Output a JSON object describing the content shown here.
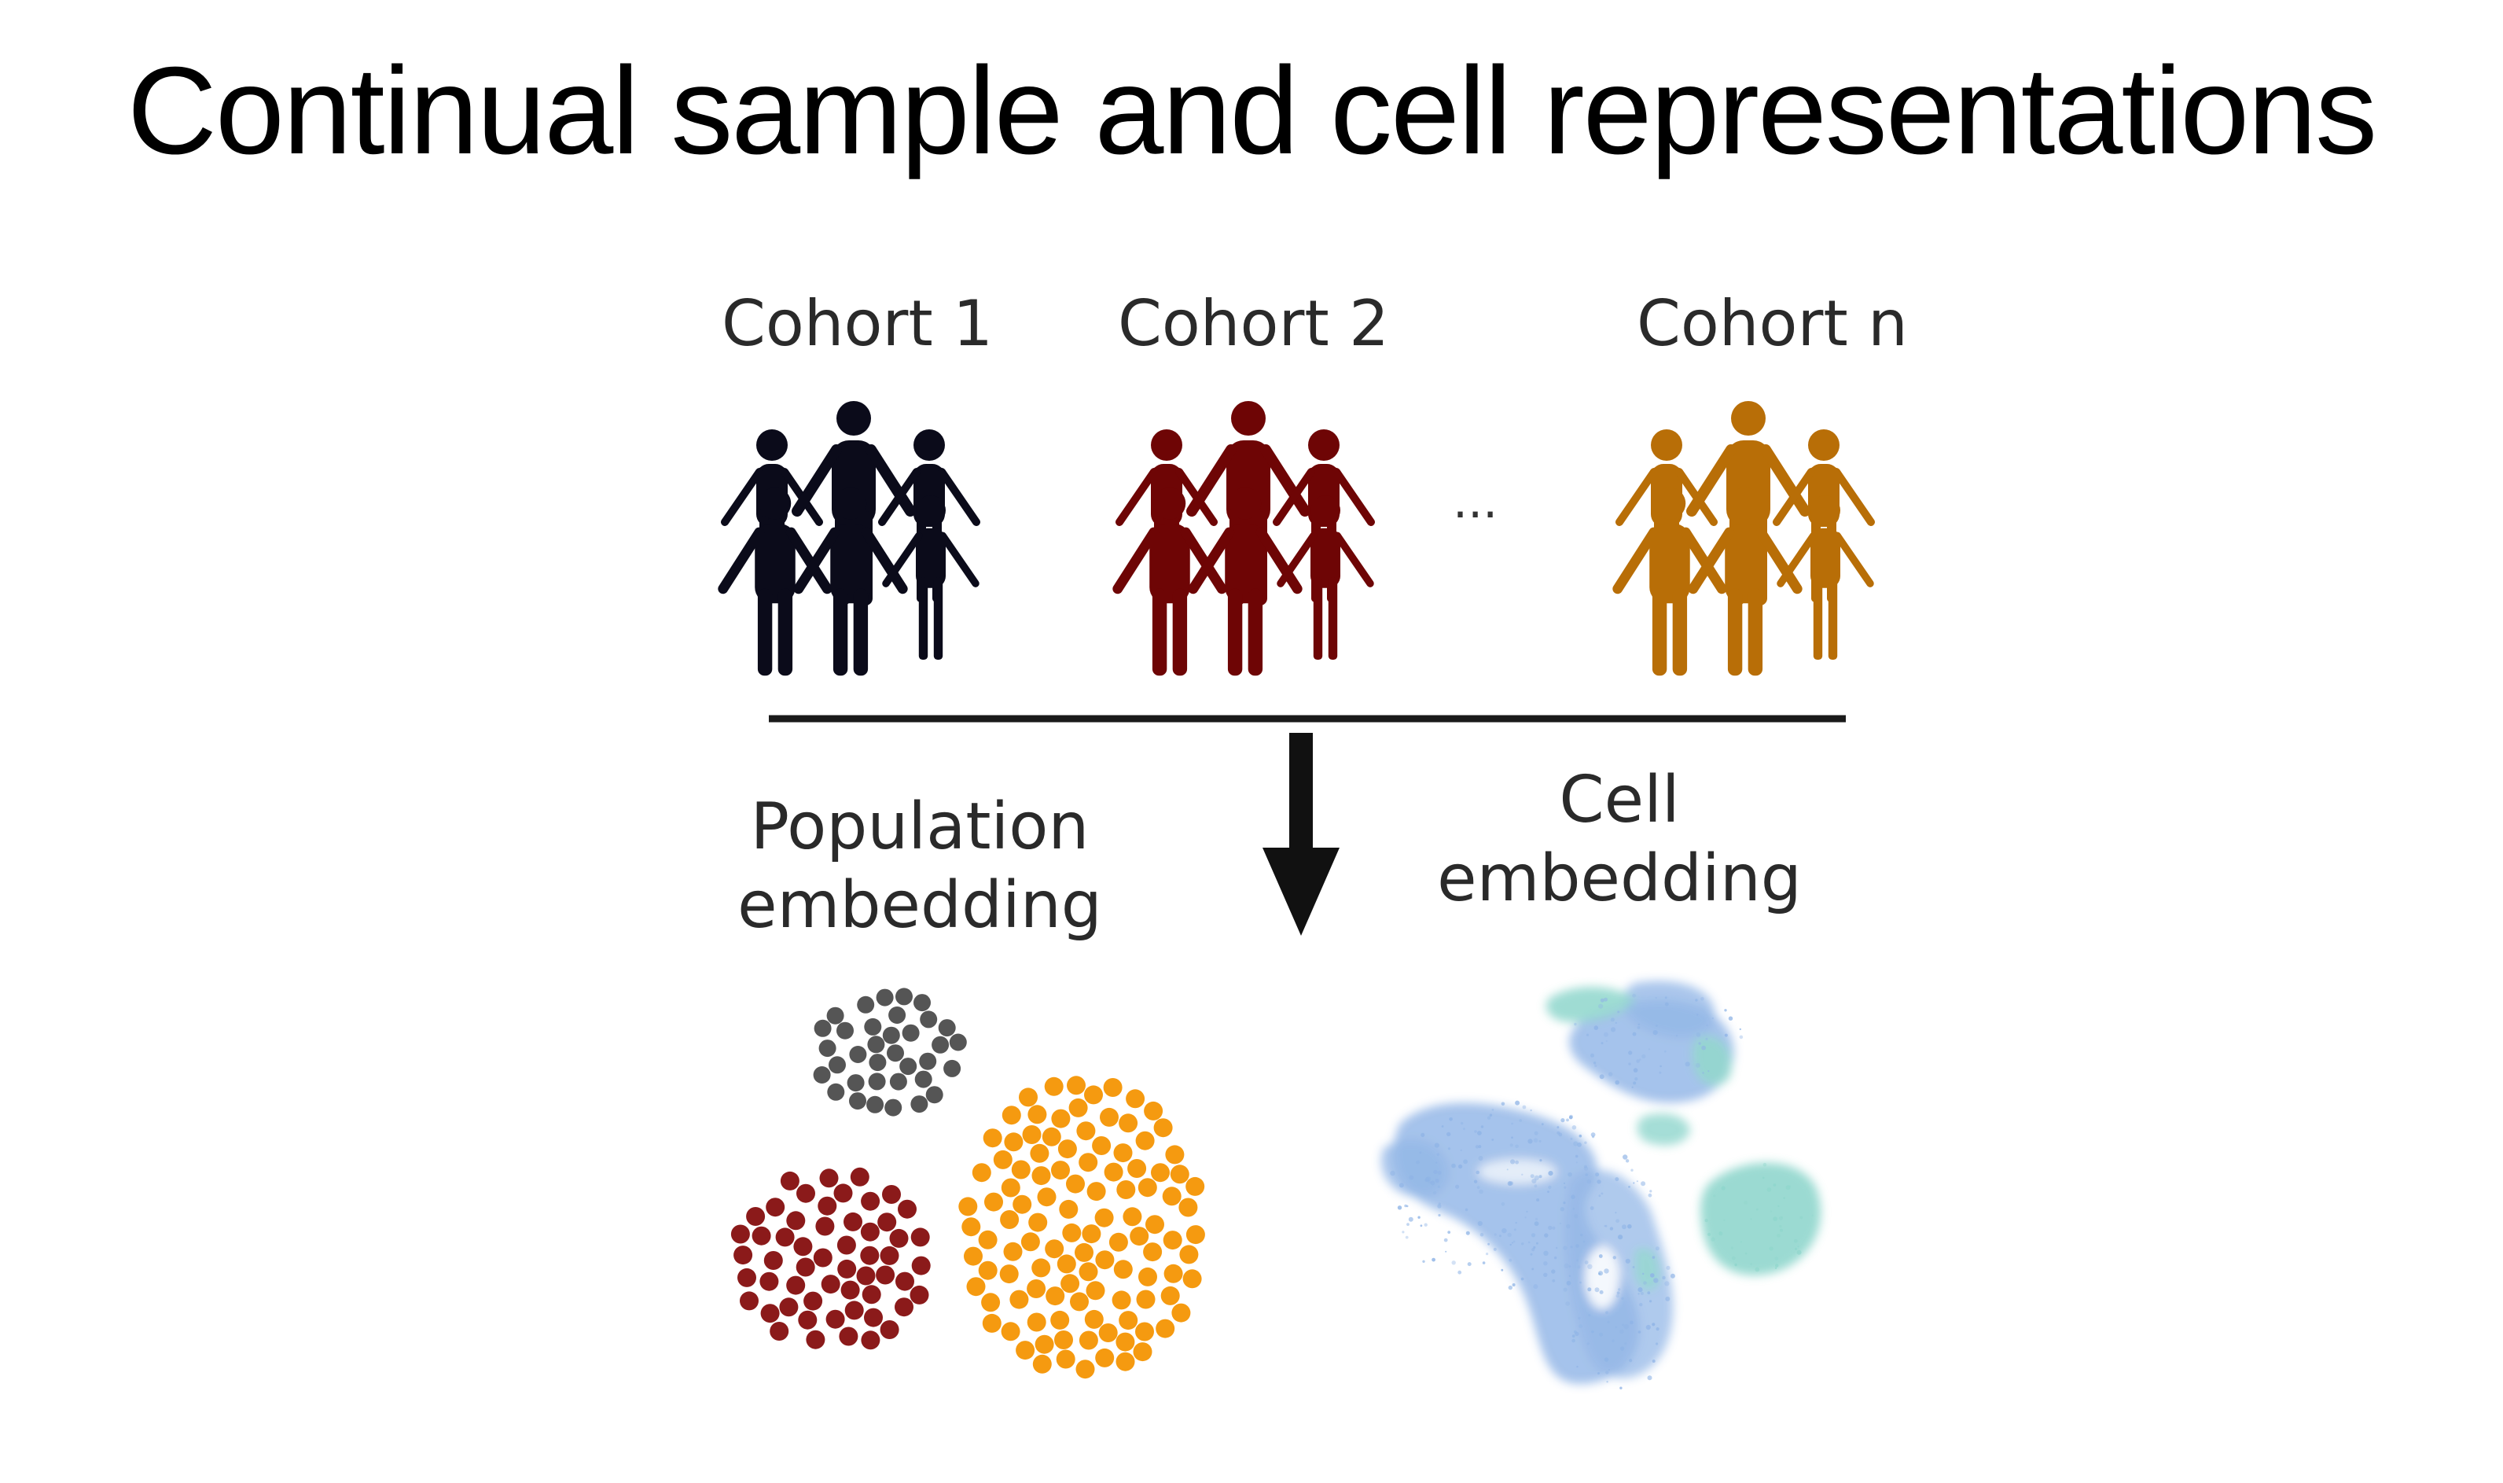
{
  "title": "Continual sample and cell representations",
  "cohorts": [
    {
      "label": "Cohort 1",
      "color": "#0b0b1a"
    },
    {
      "label": "Cohort 2",
      "color": "#6e0505"
    },
    {
      "label": "Cohort n",
      "color": "#b86e07"
    }
  ],
  "ellipsis": "...",
  "population_embedding": {
    "line1": "Population",
    "line2": "embedding",
    "cluster_colors": [
      "#555555",
      "#8b1a1a",
      "#f59a10"
    ]
  },
  "cell_embedding": {
    "line1": "Cell",
    "line2": "embedding",
    "colors": [
      "#8fb4e6",
      "#8fd6cc"
    ]
  },
  "icons": {
    "people_group": "people-group-icon",
    "arrow": "down-arrow-icon"
  }
}
